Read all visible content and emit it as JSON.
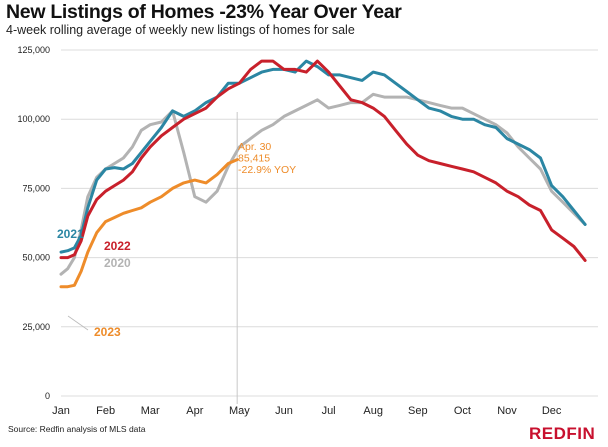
{
  "header": {
    "title": "New Listings of Homes -23% Year Over Year",
    "subtitle": "4-week rolling average of weekly new listings of homes for sale"
  },
  "footer": {
    "source": "Source: Redfin analysis of MLS data",
    "brand": "REDFIN"
  },
  "chart_data": {
    "type": "line",
    "title": "New Listings of Homes -23% Year Over Year",
    "subtitle": "4-week rolling average of weekly new listings of homes for sale",
    "xlabel": "",
    "ylabel": "",
    "ylim": [
      0,
      125000
    ],
    "yticks": [
      0,
      25000,
      50000,
      75000,
      100000,
      125000
    ],
    "ytick_labels": [
      "0",
      "25,000",
      "50,000",
      "75,000",
      "100,000",
      "125,000"
    ],
    "xlim": [
      0,
      12
    ],
    "months": [
      "Jan",
      "Feb",
      "Mar",
      "Apr",
      "May",
      "Jun",
      "Jul",
      "Aug",
      "Sep",
      "Oct",
      "Nov",
      "Dec"
    ],
    "x_unit": "months from Jan 1",
    "grid": true,
    "colors": {
      "2021": "#2b86a3",
      "2022": "#c8202b",
      "2020": "#b3b3b3",
      "2023": "#ee8c2a",
      "grid": "#dcdcdc",
      "marker": "#c8c8c8"
    },
    "series": [
      {
        "name": "2021",
        "x": [
          0.0,
          0.15,
          0.3,
          0.45,
          0.6,
          0.8,
          1.0,
          1.2,
          1.4,
          1.6,
          1.8,
          2.0,
          2.25,
          2.5,
          2.75,
          3.0,
          3.25,
          3.5,
          3.75,
          4.0,
          4.25,
          4.5,
          4.75,
          5.0,
          5.25,
          5.5,
          5.75,
          6.0,
          6.25,
          6.5,
          6.75,
          7.0,
          7.25,
          7.5,
          7.75,
          8.0,
          8.25,
          8.5,
          8.75,
          9.0,
          9.25,
          9.5,
          9.75,
          10.0,
          10.25,
          10.5,
          10.75,
          11.0,
          11.25,
          11.5,
          11.75
        ],
        "values": [
          52000,
          52500,
          53500,
          58000,
          68000,
          78000,
          82000,
          82500,
          82000,
          84000,
          88000,
          92000,
          97000,
          103000,
          101000,
          103000,
          106000,
          108000,
          113000,
          113000,
          115000,
          117000,
          118000,
          118000,
          117000,
          121000,
          119000,
          116000,
          116000,
          115000,
          114000,
          117000,
          116000,
          113000,
          110000,
          107000,
          104000,
          103000,
          101000,
          100000,
          100000,
          98000,
          97000,
          93000,
          91000,
          89000,
          86000,
          76000,
          72000,
          67000,
          62000
        ]
      },
      {
        "name": "2022",
        "x": [
          0.0,
          0.15,
          0.3,
          0.45,
          0.6,
          0.8,
          1.0,
          1.2,
          1.4,
          1.6,
          1.8,
          2.0,
          2.25,
          2.5,
          2.75,
          3.0,
          3.25,
          3.5,
          3.75,
          4.0,
          4.25,
          4.5,
          4.75,
          5.0,
          5.25,
          5.5,
          5.75,
          6.0,
          6.25,
          6.5,
          6.75,
          7.0,
          7.25,
          7.5,
          7.75,
          8.0,
          8.25,
          8.5,
          8.75,
          9.0,
          9.25,
          9.5,
          9.75,
          10.0,
          10.25,
          10.5,
          10.75,
          11.0,
          11.25,
          11.5,
          11.75
        ],
        "values": [
          50000,
          50000,
          51000,
          56000,
          65000,
          71000,
          74000,
          76000,
          78000,
          81000,
          86000,
          90000,
          94000,
          97000,
          100000,
          102000,
          104000,
          108000,
          111000,
          113000,
          118000,
          121000,
          121000,
          118000,
          118000,
          117000,
          121000,
          117000,
          112000,
          107000,
          106000,
          104000,
          101000,
          96000,
          91000,
          87000,
          85000,
          84000,
          83000,
          82000,
          81000,
          79000,
          77000,
          74000,
          72000,
          69000,
          67000,
          60000,
          57000,
          54000,
          49000
        ]
      },
      {
        "name": "2020",
        "x": [
          0.0,
          0.15,
          0.3,
          0.45,
          0.6,
          0.8,
          1.0,
          1.2,
          1.4,
          1.6,
          1.8,
          2.0,
          2.25,
          2.5,
          2.75,
          3.0,
          3.25,
          3.5,
          3.75,
          4.0,
          4.25,
          4.5,
          4.75,
          5.0,
          5.25,
          5.5,
          5.75,
          6.0,
          6.25,
          6.5,
          6.75,
          7.0,
          7.25,
          7.5,
          7.75,
          8.0,
          8.25,
          8.5,
          8.75,
          9.0,
          9.25,
          9.5,
          9.75,
          10.0,
          10.25,
          10.5,
          10.75,
          11.0,
          11.25,
          11.5,
          11.75
        ],
        "values": [
          44000,
          46000,
          50000,
          60000,
          72000,
          79000,
          82000,
          84000,
          86000,
          90000,
          96000,
          98000,
          99000,
          103000,
          88000,
          72000,
          70000,
          74000,
          83000,
          90000,
          93000,
          96000,
          98000,
          101000,
          103000,
          105000,
          107000,
          104000,
          105000,
          106000,
          106000,
          109000,
          108000,
          108000,
          108000,
          107000,
          106000,
          105000,
          104000,
          104000,
          102000,
          100000,
          98000,
          95000,
          90000,
          86000,
          82000,
          74000,
          70000,
          66000,
          62000
        ]
      },
      {
        "name": "2023",
        "x": [
          0.0,
          0.15,
          0.3,
          0.45,
          0.6,
          0.8,
          1.0,
          1.2,
          1.4,
          1.6,
          1.8,
          2.0,
          2.25,
          2.5,
          2.75,
          3.0,
          3.25,
          3.5,
          3.75,
          3.95
        ],
        "values": [
          39500,
          39500,
          40000,
          45000,
          52000,
          59000,
          63000,
          64500,
          66000,
          67000,
          68000,
          70000,
          72000,
          75000,
          77000,
          78000,
          77000,
          80000,
          84000,
          85415
        ]
      }
    ],
    "series_labels": [
      "2021",
      "2022",
      "2020",
      "2023"
    ],
    "annotation": {
      "lines": [
        "Apr. 30",
        "85,415",
        "-22.9% YOY"
      ],
      "x": 3.95,
      "y": 85415
    }
  }
}
